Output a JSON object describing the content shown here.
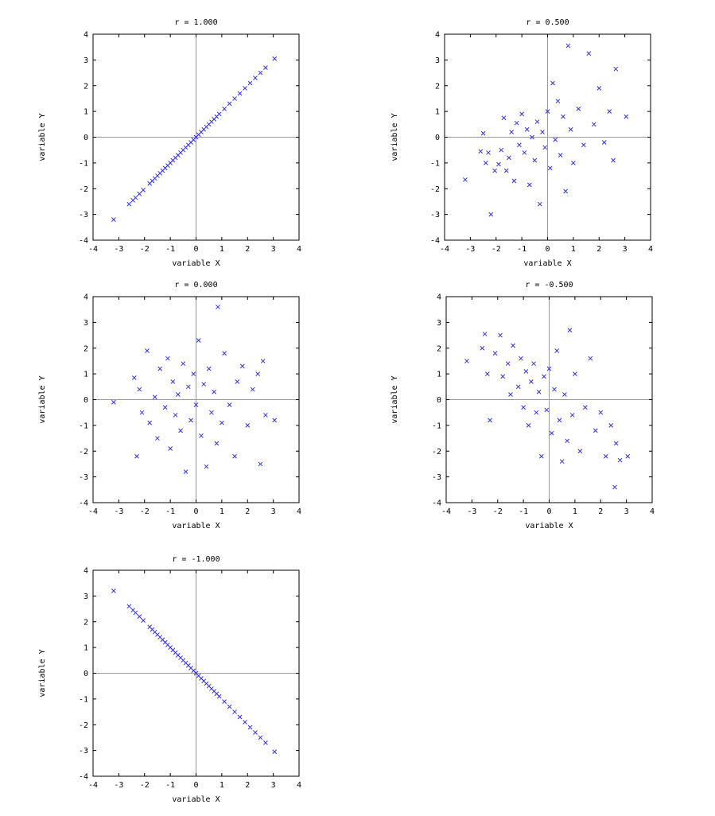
{
  "chart_data": [
    {
      "type": "scatter",
      "title": "r = 1.000",
      "xlabel": "variable X",
      "ylabel": "variable Y",
      "xlim": [
        -4,
        4
      ],
      "ylim": [
        -4,
        4
      ],
      "xticks": [
        -4,
        -3,
        -2,
        -1,
        0,
        1,
        2,
        3,
        4
      ],
      "yticks": [
        -4,
        -3,
        -2,
        -1,
        0,
        1,
        2,
        3,
        4
      ],
      "marker": "x",
      "color": "#3333dd",
      "axis_color": "#999999",
      "grid": false,
      "zero_lines": true,
      "r": 1.0,
      "points": [
        [
          -3.2,
          -3.2
        ],
        [
          -2.6,
          -2.6
        ],
        [
          -2.45,
          -2.45
        ],
        [
          -2.35,
          -2.35
        ],
        [
          -2.2,
          -2.2
        ],
        [
          -2.05,
          -2.05
        ],
        [
          -1.8,
          -1.8
        ],
        [
          -1.7,
          -1.7
        ],
        [
          -1.6,
          -1.6
        ],
        [
          -1.5,
          -1.5
        ],
        [
          -1.4,
          -1.4
        ],
        [
          -1.3,
          -1.3
        ],
        [
          -1.2,
          -1.2
        ],
        [
          -1.1,
          -1.1
        ],
        [
          -1.0,
          -1.0
        ],
        [
          -0.9,
          -0.9
        ],
        [
          -0.8,
          -0.8
        ],
        [
          -0.7,
          -0.7
        ],
        [
          -0.6,
          -0.6
        ],
        [
          -0.5,
          -0.5
        ],
        [
          -0.4,
          -0.4
        ],
        [
          -0.3,
          -0.3
        ],
        [
          -0.2,
          -0.2
        ],
        [
          -0.1,
          -0.1
        ],
        [
          0.0,
          0.0
        ],
        [
          0.1,
          0.1
        ],
        [
          0.2,
          0.2
        ],
        [
          0.3,
          0.3
        ],
        [
          0.4,
          0.4
        ],
        [
          0.5,
          0.5
        ],
        [
          0.6,
          0.6
        ],
        [
          0.7,
          0.7
        ],
        [
          0.8,
          0.8
        ],
        [
          0.9,
          0.9
        ],
        [
          1.1,
          1.1
        ],
        [
          1.3,
          1.3
        ],
        [
          1.5,
          1.5
        ],
        [
          1.7,
          1.7
        ],
        [
          1.9,
          1.9
        ],
        [
          2.1,
          2.1
        ],
        [
          2.3,
          2.3
        ],
        [
          2.5,
          2.5
        ],
        [
          2.7,
          2.7
        ],
        [
          3.05,
          3.05
        ]
      ]
    },
    {
      "type": "scatter",
      "title": "r = 0.500",
      "xlabel": "variable X",
      "ylabel": "variable Y",
      "xlim": [
        -4,
        4
      ],
      "ylim": [
        -4,
        4
      ],
      "xticks": [
        -4,
        -3,
        -2,
        -1,
        0,
        1,
        2,
        3,
        4
      ],
      "yticks": [
        -4,
        -3,
        -2,
        -1,
        0,
        1,
        2,
        3,
        4
      ],
      "marker": "x",
      "color": "#3333dd",
      "axis_color": "#999999",
      "grid": false,
      "zero_lines": true,
      "r": 0.5,
      "points": [
        [
          -3.2,
          -1.65
        ],
        [
          -2.6,
          -0.55
        ],
        [
          -2.5,
          0.15
        ],
        [
          -2.4,
          -1.0
        ],
        [
          -2.3,
          -0.6
        ],
        [
          -2.2,
          -3.0
        ],
        [
          -2.05,
          -1.3
        ],
        [
          -1.9,
          -1.05
        ],
        [
          -1.8,
          -0.5
        ],
        [
          -1.7,
          0.75
        ],
        [
          -1.6,
          -1.3
        ],
        [
          -1.5,
          -0.8
        ],
        [
          -1.4,
          0.2
        ],
        [
          -1.3,
          -1.7
        ],
        [
          -1.2,
          0.55
        ],
        [
          -1.1,
          -0.3
        ],
        [
          -1.0,
          0.9
        ],
        [
          -0.9,
          -0.6
        ],
        [
          -0.8,
          0.3
        ],
        [
          -0.7,
          -1.85
        ],
        [
          -0.6,
          0.0
        ],
        [
          -0.5,
          -0.9
        ],
        [
          -0.4,
          0.6
        ],
        [
          -0.3,
          -2.6
        ],
        [
          -0.2,
          0.2
        ],
        [
          -0.1,
          -0.4
        ],
        [
          0.0,
          1.0
        ],
        [
          0.1,
          -1.2
        ],
        [
          0.2,
          2.1
        ],
        [
          0.3,
          -0.1
        ],
        [
          0.4,
          1.4
        ],
        [
          0.5,
          -0.7
        ],
        [
          0.6,
          0.8
        ],
        [
          0.7,
          -2.1
        ],
        [
          0.8,
          3.55
        ],
        [
          0.9,
          0.3
        ],
        [
          1.0,
          -1.0
        ],
        [
          1.2,
          1.1
        ],
        [
          1.4,
          -0.3
        ],
        [
          1.6,
          3.25
        ],
        [
          1.8,
          0.5
        ],
        [
          2.0,
          1.9
        ],
        [
          2.2,
          -0.2
        ],
        [
          2.4,
          1.0
        ],
        [
          2.55,
          -0.9
        ],
        [
          2.65,
          2.65
        ],
        [
          3.05,
          0.8
        ]
      ]
    },
    {
      "type": "scatter",
      "title": "r = 0.000",
      "xlabel": "variable X",
      "ylabel": "variable Y",
      "xlim": [
        -4,
        4
      ],
      "ylim": [
        -4,
        4
      ],
      "xticks": [
        -4,
        -3,
        -2,
        -1,
        0,
        1,
        2,
        3,
        4
      ],
      "yticks": [
        -4,
        -3,
        -2,
        -1,
        0,
        1,
        2,
        3,
        4
      ],
      "marker": "x",
      "color": "#3333dd",
      "axis_color": "#999999",
      "grid": false,
      "zero_lines": true,
      "r": 0.0,
      "points": [
        [
          -3.2,
          -0.1
        ],
        [
          -2.4,
          0.85
        ],
        [
          -2.3,
          -2.2
        ],
        [
          -2.2,
          0.4
        ],
        [
          -2.1,
          -0.5
        ],
        [
          -1.9,
          1.9
        ],
        [
          -1.8,
          -0.9
        ],
        [
          -1.6,
          0.1
        ],
        [
          -1.5,
          -1.5
        ],
        [
          -1.4,
          1.2
        ],
        [
          -1.2,
          -0.3
        ],
        [
          -1.1,
          1.6
        ],
        [
          -1.0,
          -1.9
        ],
        [
          -0.9,
          0.7
        ],
        [
          -0.8,
          -0.6
        ],
        [
          -0.7,
          0.2
        ],
        [
          -0.6,
          -1.2
        ],
        [
          -0.5,
          1.4
        ],
        [
          -0.4,
          -2.8
        ],
        [
          -0.3,
          0.5
        ],
        [
          -0.2,
          -0.8
        ],
        [
          -0.1,
          1.0
        ],
        [
          0.0,
          -0.2
        ],
        [
          0.1,
          2.3
        ],
        [
          0.2,
          -1.4
        ],
        [
          0.3,
          0.6
        ],
        [
          0.4,
          -2.6
        ],
        [
          0.5,
          1.2
        ],
        [
          0.6,
          -0.5
        ],
        [
          0.7,
          0.3
        ],
        [
          0.8,
          -1.7
        ],
        [
          0.85,
          3.6
        ],
        [
          1.0,
          -0.9
        ],
        [
          1.1,
          1.8
        ],
        [
          1.3,
          -0.2
        ],
        [
          1.5,
          -2.2
        ],
        [
          1.6,
          0.7
        ],
        [
          1.8,
          1.3
        ],
        [
          2.0,
          -1.0
        ],
        [
          2.2,
          0.4
        ],
        [
          2.4,
          1.0
        ],
        [
          2.5,
          -2.5
        ],
        [
          2.6,
          1.5
        ],
        [
          2.7,
          -0.6
        ],
        [
          3.05,
          -0.8
        ]
      ]
    },
    {
      "type": "scatter",
      "title": "r = -0.500",
      "xlabel": "variable X",
      "ylabel": "variable Y",
      "xlim": [
        -4,
        4
      ],
      "ylim": [
        -4,
        4
      ],
      "xticks": [
        -4,
        -3,
        -2,
        -1,
        0,
        1,
        2,
        3,
        4
      ],
      "yticks": [
        -4,
        -3,
        -2,
        -1,
        0,
        1,
        2,
        3,
        4
      ],
      "marker": "x",
      "color": "#3333dd",
      "axis_color": "#999999",
      "grid": false,
      "zero_lines": true,
      "r": -0.5,
      "points": [
        [
          -3.2,
          1.5
        ],
        [
          -2.6,
          2.0
        ],
        [
          -2.5,
          2.55
        ],
        [
          -2.4,
          1.0
        ],
        [
          -2.3,
          -0.8
        ],
        [
          -2.1,
          1.8
        ],
        [
          -1.9,
          2.5
        ],
        [
          -1.8,
          0.9
        ],
        [
          -1.6,
          1.4
        ],
        [
          -1.5,
          0.2
        ],
        [
          -1.4,
          2.1
        ],
        [
          -1.2,
          0.5
        ],
        [
          -1.1,
          1.6
        ],
        [
          -1.0,
          -0.3
        ],
        [
          -0.9,
          1.1
        ],
        [
          -0.8,
          -1.0
        ],
        [
          -0.7,
          0.7
        ],
        [
          -0.6,
          1.4
        ],
        [
          -0.5,
          -0.5
        ],
        [
          -0.4,
          0.3
        ],
        [
          -0.3,
          -2.2
        ],
        [
          -0.2,
          0.9
        ],
        [
          -0.1,
          -0.4
        ],
        [
          0.0,
          1.2
        ],
        [
          0.1,
          -1.3
        ],
        [
          0.2,
          0.4
        ],
        [
          0.3,
          1.9
        ],
        [
          0.4,
          -0.8
        ],
        [
          0.5,
          -2.4
        ],
        [
          0.6,
          0.2
        ],
        [
          0.7,
          -1.6
        ],
        [
          0.8,
          2.7
        ],
        [
          0.9,
          -0.6
        ],
        [
          1.0,
          1.0
        ],
        [
          1.2,
          -2.0
        ],
        [
          1.4,
          -0.3
        ],
        [
          1.6,
          1.6
        ],
        [
          1.8,
          -1.2
        ],
        [
          2.0,
          -0.5
        ],
        [
          2.2,
          -2.2
        ],
        [
          2.4,
          -1.0
        ],
        [
          2.55,
          -3.4
        ],
        [
          2.6,
          -1.7
        ],
        [
          2.75,
          -2.35
        ],
        [
          3.05,
          -2.2
        ]
      ]
    },
    {
      "type": "scatter",
      "title": "r = -1.000",
      "xlabel": "variable X",
      "ylabel": "variable Y",
      "xlim": [
        -4,
        4
      ],
      "ylim": [
        -4,
        4
      ],
      "xticks": [
        -4,
        -3,
        -2,
        -1,
        0,
        1,
        2,
        3,
        4
      ],
      "yticks": [
        -4,
        -3,
        -2,
        -1,
        0,
        1,
        2,
        3,
        4
      ],
      "marker": "x",
      "color": "#3333dd",
      "axis_color": "#999999",
      "grid": false,
      "zero_lines": true,
      "r": -1.0,
      "points": [
        [
          -3.2,
          3.2
        ],
        [
          -2.6,
          2.6
        ],
        [
          -2.45,
          2.45
        ],
        [
          -2.35,
          2.35
        ],
        [
          -2.2,
          2.2
        ],
        [
          -2.05,
          2.05
        ],
        [
          -1.8,
          1.8
        ],
        [
          -1.7,
          1.7
        ],
        [
          -1.6,
          1.6
        ],
        [
          -1.5,
          1.5
        ],
        [
          -1.4,
          1.4
        ],
        [
          -1.3,
          1.3
        ],
        [
          -1.2,
          1.2
        ],
        [
          -1.1,
          1.1
        ],
        [
          -1.0,
          1.0
        ],
        [
          -0.9,
          0.9
        ],
        [
          -0.8,
          0.8
        ],
        [
          -0.7,
          0.7
        ],
        [
          -0.6,
          0.6
        ],
        [
          -0.5,
          0.5
        ],
        [
          -0.4,
          0.4
        ],
        [
          -0.3,
          0.3
        ],
        [
          -0.2,
          0.2
        ],
        [
          -0.1,
          0.1
        ],
        [
          0.0,
          0.0
        ],
        [
          0.1,
          -0.1
        ],
        [
          0.2,
          -0.2
        ],
        [
          0.3,
          -0.3
        ],
        [
          0.4,
          -0.4
        ],
        [
          0.5,
          -0.5
        ],
        [
          0.6,
          -0.6
        ],
        [
          0.7,
          -0.7
        ],
        [
          0.8,
          -0.8
        ],
        [
          0.9,
          -0.9
        ],
        [
          1.1,
          -1.1
        ],
        [
          1.3,
          -1.3
        ],
        [
          1.5,
          -1.5
        ],
        [
          1.7,
          -1.7
        ],
        [
          1.9,
          -1.9
        ],
        [
          2.1,
          -2.1
        ],
        [
          2.3,
          -2.3
        ],
        [
          2.5,
          -2.5
        ],
        [
          2.7,
          -2.7
        ],
        [
          3.05,
          -3.05
        ]
      ]
    }
  ]
}
